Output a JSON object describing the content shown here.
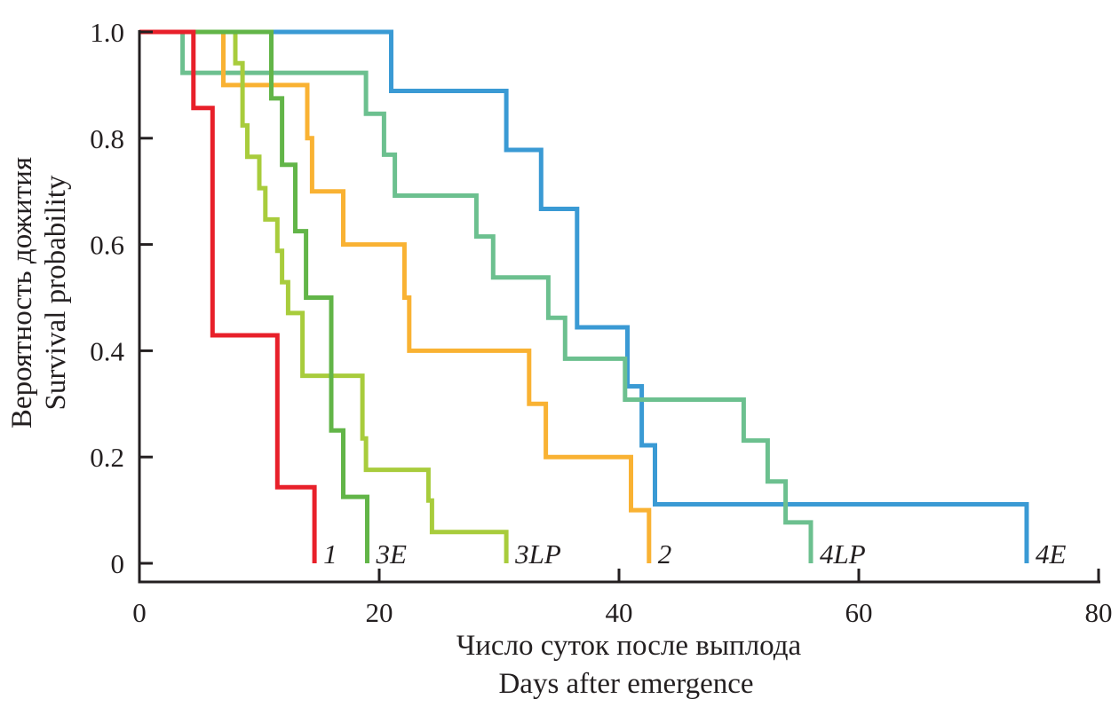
{
  "chart_data": {
    "type": "line",
    "step": true,
    "title": "",
    "xlabel": [
      "Число суток после выплода",
      "Days after emergence"
    ],
    "ylabel": [
      "Вероятность дожития",
      "Survival probability"
    ],
    "xlim": [
      0,
      80
    ],
    "ylim": [
      0,
      1
    ],
    "xticks": [
      0,
      20,
      40,
      60,
      80
    ],
    "yticks": [
      0,
      0.2,
      0.4,
      0.6,
      0.8,
      1.0
    ],
    "xtick_labels": [
      "0",
      "20",
      "40",
      "60",
      "80"
    ],
    "ytick_labels": [
      "0",
      "0.2",
      "0.4",
      "0.6",
      "0.8",
      "1.0"
    ],
    "grid": false,
    "legend": "none",
    "series": [
      {
        "name": "1",
        "color": "#e8202a",
        "x": [
          4.5,
          6.1,
          11.5,
          14.6
        ],
        "y": [
          0.857,
          0.429,
          0.143,
          0
        ]
      },
      {
        "name": "3E",
        "color": "#62b548",
        "x": [
          11.0,
          11.9,
          13.0,
          13.9,
          16.0,
          17.0,
          19.0
        ],
        "y": [
          0.875,
          0.75,
          0.625,
          0.5,
          0.25,
          0.125,
          0
        ]
      },
      {
        "name": "3LP",
        "color": "#a8cc3c",
        "x": [
          8.0,
          8.6,
          9.0,
          10.0,
          10.5,
          11.5,
          11.9,
          12.4,
          13.6,
          18.6,
          18.9,
          24.1,
          24.4,
          30.6
        ],
        "y": [
          0.941,
          0.824,
          0.765,
          0.706,
          0.647,
          0.588,
          0.529,
          0.471,
          0.353,
          0.235,
          0.176,
          0.118,
          0.059,
          0
        ]
      },
      {
        "name": "2",
        "color": "#f9b233",
        "x": [
          7.0,
          14.0,
          14.4,
          17.0,
          22.1,
          22.5,
          32.5,
          33.9,
          41.0,
          42.5
        ],
        "y": [
          0.9,
          0.8,
          0.7,
          0.6,
          0.5,
          0.4,
          0.3,
          0.2,
          0.1,
          0
        ]
      },
      {
        "name": "4LP",
        "color": "#6cc08f",
        "x": [
          3.6,
          18.9,
          20.4,
          21.3,
          28.1,
          29.5,
          34.1,
          35.5,
          40.5,
          50.4,
          52.4,
          53.9,
          56.0
        ],
        "y": [
          0.923,
          0.846,
          0.769,
          0.692,
          0.615,
          0.538,
          0.462,
          0.385,
          0.308,
          0.231,
          0.154,
          0.077,
          0
        ]
      },
      {
        "name": "4E",
        "color": "#3a9ad4",
        "x": [
          21.0,
          30.6,
          33.5,
          36.5,
          40.7,
          41.9,
          43.0,
          74.0
        ],
        "y": [
          0.889,
          0.778,
          0.667,
          0.444,
          0.333,
          0.222,
          0.111,
          0
        ]
      }
    ]
  }
}
